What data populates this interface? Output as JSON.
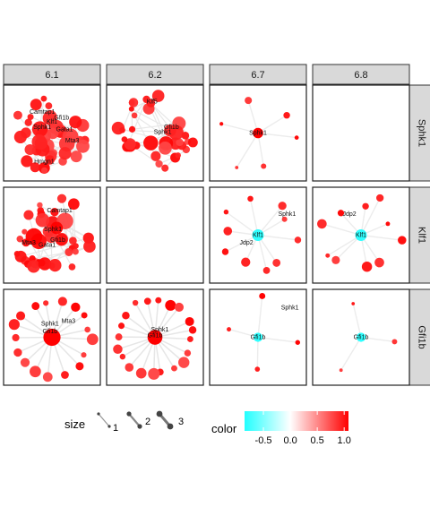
{
  "chart_data": {
    "type": "network-facet-grid",
    "columns": [
      "6.1",
      "6.2",
      "6.7",
      "6.8"
    ],
    "rows": [
      "Sphk1",
      "Klf1",
      "Gfi1b"
    ],
    "legend": {
      "size": {
        "title": "size",
        "values": [
          "1",
          "2",
          "3"
        ]
      },
      "color": {
        "title": "color",
        "ticks": [
          "-0.5",
          "0.0",
          "0.5",
          "1.0"
        ],
        "range": [
          -0.85,
          1.08
        ],
        "scale": [
          "#22ffff",
          "#ffffff",
          "#ff0000"
        ]
      }
    },
    "panels": [
      {
        "row": "Sphk1",
        "col": "6.1",
        "layout": "cluster",
        "node_count": 38,
        "seed": 11,
        "labels": [
          {
            "text": "Camtap1",
            "u": 0.4,
            "v": 0.3
          },
          {
            "text": "Gfi1b",
            "u": 0.6,
            "v": 0.36
          },
          {
            "text": "Klf1",
            "u": 0.5,
            "v": 0.4
          },
          {
            "text": "Sphk1",
            "u": 0.4,
            "v": 0.46
          },
          {
            "text": "Gata1",
            "u": 0.63,
            "v": 0.48
          },
          {
            "text": "Mta3",
            "u": 0.71,
            "v": 0.6
          },
          {
            "text": "Hmgn1",
            "u": 0.42,
            "v": 0.82
          }
        ]
      },
      {
        "row": "Sphk1",
        "col": "6.2",
        "layout": "cluster",
        "node_count": 34,
        "seed": 23,
        "labels": [
          {
            "text": "Klf5",
            "u": 0.47,
            "v": 0.19
          },
          {
            "text": "Gfi1b",
            "u": 0.67,
            "v": 0.46
          },
          {
            "text": "Sphk1",
            "u": 0.58,
            "v": 0.51
          }
        ]
      },
      {
        "row": "Sphk1",
        "col": "6.7",
        "layout": "star",
        "hub": "Sphk1",
        "hub_value": 1.0,
        "hub_size": 1.7,
        "spokes": 6,
        "spoke_size": 1.15,
        "seed": 5
      },
      {
        "row": "Sphk1",
        "col": "6.8",
        "layout": "empty"
      },
      {
        "row": "Klf1",
        "col": "6.1",
        "layout": "cluster",
        "node_count": 40,
        "seed": 37,
        "labels": [
          {
            "text": "Camtap1",
            "u": 0.58,
            "v": 0.26
          },
          {
            "text": "Sphk1",
            "u": 0.51,
            "v": 0.46
          },
          {
            "text": "Gfi1b",
            "u": 0.56,
            "v": 0.57
          },
          {
            "text": "Mta3",
            "u": 0.26,
            "v": 0.6
          },
          {
            "text": "Gata1",
            "u": 0.45,
            "v": 0.62
          }
        ]
      },
      {
        "row": "Klf1",
        "col": "6.2",
        "layout": "empty"
      },
      {
        "row": "Klf1",
        "col": "6.7",
        "layout": "star",
        "hub": "Klf1",
        "hub_value": -0.8,
        "hub_size": 1.9,
        "spokes": 10,
        "spoke_size": 1.45,
        "seed": 17,
        "labels": [
          {
            "text": "Sphk1",
            "u": 0.8,
            "v": 0.3
          },
          {
            "text": "Jdp2",
            "u": 0.38,
            "v": 0.6
          }
        ]
      },
      {
        "row": "Klf1",
        "col": "6.8",
        "layout": "star",
        "hub": "Klf1",
        "hub_value": -0.8,
        "hub_size": 1.9,
        "spokes": 10,
        "spoke_size": 1.55,
        "seed": 29,
        "labels": [
          {
            "text": "Jdp2",
            "u": 0.38,
            "v": 0.3
          }
        ]
      },
      {
        "row": "Gfi1b",
        "col": "6.1",
        "layout": "ring",
        "hub": "Gfi1b",
        "hub_value": 1.0,
        "hub_size": 3.0,
        "ring_count": 17,
        "seed": 41,
        "labels": [
          {
            "text": "Sphk1",
            "u": 0.48,
            "v": 0.38
          },
          {
            "text": "Mta3",
            "u": 0.67,
            "v": 0.35
          },
          {
            "text": "Gfi1b",
            "u": 0.48,
            "v": 0.46
          }
        ]
      },
      {
        "row": "Gfi1b",
        "col": "6.2",
        "layout": "ring",
        "hub": "Gfi1b",
        "hub_value": 1.0,
        "hub_size": 2.6,
        "ring_count": 20,
        "seed": 53,
        "labels": [
          {
            "text": "Sphk1",
            "u": 0.55,
            "v": 0.44
          },
          {
            "text": "Gfi1b",
            "u": 0.5,
            "v": 0.5
          }
        ]
      },
      {
        "row": "Gfi1b",
        "col": "6.7",
        "layout": "star",
        "hub": "Gfi1b",
        "hub_value": -0.8,
        "hub_size": 1.5,
        "spokes": 4,
        "spoke_size": 0.95,
        "seed": 61,
        "labels": [
          {
            "text": "Sphk1",
            "u": 0.83,
            "v": 0.21
          }
        ]
      },
      {
        "row": "Gfi1b",
        "col": "6.8",
        "layout": "star",
        "hub": "Gfi1b",
        "hub_value": -0.8,
        "hub_size": 1.5,
        "spokes": 3,
        "spoke_size": 0.95,
        "seed": 67
      }
    ]
  }
}
